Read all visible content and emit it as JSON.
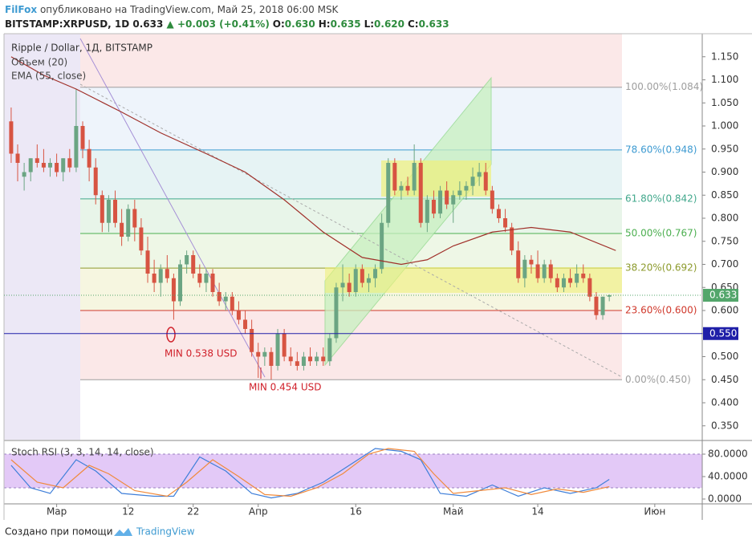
{
  "header": {
    "author": "FilFox",
    "published": "опубликовано на TradingView.com, Май 25, 2018 06:00 MSK",
    "symbol": "BITSTAMP:XRPUSD, 1D",
    "last": "0.633",
    "change": "▲ +0.003 (+0.41%)",
    "ohlc": [
      {
        "label": "O:",
        "value": "0.630"
      },
      {
        "label": "H:",
        "value": "0.635"
      },
      {
        "label": "L:",
        "value": "0.620"
      },
      {
        "label": "C:",
        "value": "0.633"
      }
    ]
  },
  "chart_data": [
    {
      "type": "candlestick",
      "title": "Ripple / Dollar, 1Д, BITSTAMP",
      "volume_label": "Объем (20)",
      "up_color": "#6ba583",
      "down_color": "#d75442",
      "open": [
        1.01,
        0.94,
        0.89,
        0.9,
        0.93,
        0.92,
        0.91,
        0.92,
        0.9,
        0.93,
        0.91,
        1.0,
        0.95,
        0.91,
        0.85,
        0.79,
        0.84,
        0.79,
        0.76,
        0.82,
        0.78,
        0.73,
        0.68,
        0.66,
        0.69,
        0.67,
        0.62,
        0.7,
        0.72,
        0.68,
        0.66,
        0.68,
        0.64,
        0.62,
        0.63,
        0.6,
        0.58,
        0.56,
        0.51,
        0.5,
        0.51,
        0.48,
        0.55,
        0.5,
        0.49,
        0.48,
        0.5,
        0.49,
        0.5,
        0.49,
        0.54,
        0.65,
        0.66,
        0.64,
        0.69,
        0.66,
        0.67,
        0.69,
        0.79,
        0.92,
        0.86,
        0.87,
        0.86,
        0.92,
        0.79,
        0.84,
        0.81,
        0.86,
        0.83,
        0.85,
        0.86,
        0.87,
        0.89,
        0.9,
        0.86,
        0.82,
        0.8,
        0.78,
        0.73,
        0.67,
        0.71,
        0.7,
        0.67,
        0.7,
        0.67,
        0.65,
        0.67,
        0.66,
        0.68,
        0.67,
        0.63,
        0.59,
        0.63
      ],
      "high": [
        1.04,
        0.96,
        0.92,
        0.93,
        0.96,
        0.95,
        0.93,
        0.94,
        0.93,
        0.95,
        1.08,
        1.01,
        0.97,
        0.93,
        0.86,
        0.85,
        0.86,
        0.82,
        0.83,
        0.84,
        0.8,
        0.76,
        0.71,
        0.7,
        0.72,
        0.68,
        0.71,
        0.73,
        0.73,
        0.7,
        0.69,
        0.69,
        0.66,
        0.64,
        0.64,
        0.62,
        0.6,
        0.58,
        0.53,
        0.52,
        0.52,
        0.56,
        0.56,
        0.52,
        0.51,
        0.51,
        0.52,
        0.51,
        0.52,
        0.55,
        0.66,
        0.7,
        0.68,
        0.7,
        0.7,
        0.68,
        0.7,
        0.81,
        0.93,
        0.93,
        0.88,
        0.89,
        0.96,
        0.93,
        0.85,
        0.86,
        0.87,
        0.88,
        0.86,
        0.88,
        0.88,
        0.91,
        0.92,
        0.92,
        0.87,
        0.83,
        0.82,
        0.79,
        0.75,
        0.72,
        0.72,
        0.73,
        0.71,
        0.71,
        0.68,
        0.68,
        0.69,
        0.7,
        0.7,
        0.68,
        0.64,
        0.63,
        0.635
      ],
      "low": [
        0.92,
        0.88,
        0.86,
        0.88,
        0.91,
        0.9,
        0.89,
        0.89,
        0.88,
        0.9,
        0.9,
        0.93,
        0.88,
        0.83,
        0.77,
        0.77,
        0.78,
        0.74,
        0.75,
        0.75,
        0.72,
        0.66,
        0.64,
        0.63,
        0.66,
        0.58,
        0.61,
        0.68,
        0.67,
        0.65,
        0.64,
        0.63,
        0.61,
        0.6,
        0.59,
        0.57,
        0.55,
        0.5,
        0.454,
        0.48,
        0.45,
        0.47,
        0.49,
        0.48,
        0.47,
        0.47,
        0.48,
        0.48,
        0.48,
        0.48,
        0.53,
        0.62,
        0.63,
        0.63,
        0.65,
        0.64,
        0.65,
        0.68,
        0.78,
        0.85,
        0.84,
        0.85,
        0.85,
        0.78,
        0.77,
        0.8,
        0.8,
        0.82,
        0.79,
        0.84,
        0.84,
        0.85,
        0.87,
        0.85,
        0.81,
        0.79,
        0.77,
        0.72,
        0.66,
        0.65,
        0.68,
        0.66,
        0.66,
        0.66,
        0.64,
        0.64,
        0.65,
        0.65,
        0.66,
        0.62,
        0.58,
        0.58,
        0.62
      ],
      "close": [
        0.94,
        0.92,
        0.9,
        0.93,
        0.92,
        0.91,
        0.92,
        0.9,
        0.93,
        0.91,
        1.0,
        0.95,
        0.91,
        0.85,
        0.79,
        0.84,
        0.79,
        0.76,
        0.82,
        0.78,
        0.73,
        0.68,
        0.66,
        0.69,
        0.67,
        0.62,
        0.7,
        0.72,
        0.68,
        0.66,
        0.68,
        0.64,
        0.62,
        0.63,
        0.6,
        0.58,
        0.56,
        0.51,
        0.5,
        0.51,
        0.48,
        0.55,
        0.5,
        0.49,
        0.48,
        0.5,
        0.49,
        0.5,
        0.49,
        0.54,
        0.65,
        0.66,
        0.64,
        0.69,
        0.66,
        0.67,
        0.69,
        0.79,
        0.92,
        0.86,
        0.87,
        0.86,
        0.92,
        0.79,
        0.84,
        0.81,
        0.86,
        0.83,
        0.85,
        0.86,
        0.87,
        0.89,
        0.9,
        0.86,
        0.82,
        0.8,
        0.78,
        0.73,
        0.67,
        0.71,
        0.7,
        0.67,
        0.7,
        0.67,
        0.65,
        0.67,
        0.66,
        0.68,
        0.67,
        0.63,
        0.59,
        0.63,
        0.633
      ],
      "ema": {
        "name": "EMA (55, close)",
        "color": "#a0302a",
        "x": [
          0,
          5,
          10,
          17,
          23,
          30,
          36,
          42,
          48,
          54,
          60,
          64,
          68,
          74,
          80,
          86,
          93
        ],
        "values": [
          1.15,
          1.11,
          1.08,
          1.03,
          0.985,
          0.94,
          0.9,
          0.84,
          0.77,
          0.715,
          0.7,
          0.71,
          0.74,
          0.77,
          0.78,
          0.77,
          0.73
        ]
      },
      "fib_levels": [
        {
          "label": "100.00%(1.084)",
          "value": 1.084,
          "color": "#9e9e9e"
        },
        {
          "label": "78.60%(0.948)",
          "value": 0.948,
          "color": "#3d9ad1"
        },
        {
          "label": "61.80%(0.842)",
          "value": 0.842,
          "color": "#42a88c"
        },
        {
          "label": "50.00%(0.767)",
          "value": 0.767,
          "color": "#4caf50"
        },
        {
          "label": "38.20%(0.692)",
          "value": 0.692,
          "color": "#8c9a2c"
        },
        {
          "label": "23.60%(0.600)",
          "value": 0.6,
          "color": "#d0382b"
        },
        {
          "label": "0.00%(0.450)",
          "value": 0.45,
          "color": "#9e9e9e"
        }
      ],
      "hline": {
        "value": 0.55,
        "label": "0.550",
        "color": "#1f1fa8"
      },
      "last_price": {
        "value": 0.633,
        "label": "0.633",
        "color": "#53a66b"
      },
      "annotations": [
        "MIN 0.538 USD",
        "MIN 0.454 USD"
      ],
      "xlim": [
        -1.1,
        106.3
      ],
      "ylim": [
        0.32,
        1.2
      ],
      "yticks": [
        {
          "value": 1.15,
          "label": "1.150"
        },
        {
          "value": 1.1,
          "label": "1.100"
        },
        {
          "value": 1.05,
          "label": "1.050"
        },
        {
          "value": 1.0,
          "label": "1.000"
        },
        {
          "value": 0.95,
          "label": "0.950"
        },
        {
          "value": 0.9,
          "label": "0.900"
        },
        {
          "value": 0.85,
          "label": "0.850"
        },
        {
          "value": 0.8,
          "label": "0.800"
        },
        {
          "value": 0.75,
          "label": "0.750"
        },
        {
          "value": 0.7,
          "label": "0.700"
        },
        {
          "value": 0.65,
          "label": "0.650"
        },
        {
          "value": 0.6,
          "label": "0.600"
        },
        {
          "value": 0.55,
          "label": "0.550"
        },
        {
          "value": 0.5,
          "label": "0.500"
        },
        {
          "value": 0.45,
          "label": "0.450"
        },
        {
          "value": 0.4,
          "label": "0.400"
        },
        {
          "value": 0.35,
          "label": "0.350"
        }
      ],
      "xticks": [
        {
          "value": 7,
          "label": "Мар"
        },
        {
          "value": 18,
          "label": "12"
        },
        {
          "value": 28,
          "label": "22"
        },
        {
          "value": 38,
          "label": "Апр"
        },
        {
          "value": 53,
          "label": "16"
        },
        {
          "value": 68,
          "label": "Май"
        },
        {
          "value": 81,
          "label": "14"
        },
        {
          "value": 99,
          "label": "Июн"
        }
      ]
    },
    {
      "type": "line",
      "title": "Stoch RSI (3, 3, 14, 14, close)",
      "xlim": [
        -1.1,
        106.3
      ],
      "ylim": [
        -8.6,
        102.9
      ],
      "band": [
        20,
        80
      ],
      "band_color": "#e3c9f7",
      "yticks": [
        {
          "value": 80,
          "label": "80.0000"
        },
        {
          "value": 40,
          "label": "40.0000"
        },
        {
          "value": 0,
          "label": "0.0000"
        }
      ],
      "series": [
        {
          "color": "#3f7fd9",
          "x": [
            0,
            3,
            6,
            10,
            13,
            17,
            22,
            25,
            29,
            33,
            37,
            40,
            44,
            48,
            52,
            56,
            60,
            63,
            66,
            70,
            74,
            78,
            82,
            86,
            90,
            92
          ],
          "values": [
            60,
            20,
            10,
            70,
            50,
            10,
            5,
            5,
            75,
            50,
            10,
            2,
            10,
            30,
            60,
            90,
            85,
            70,
            10,
            5,
            25,
            5,
            20,
            10,
            20,
            35
          ]
        },
        {
          "color": "#f08a3c",
          "x": [
            0,
            4,
            8,
            12,
            15,
            19,
            24,
            27,
            31,
            35,
            39,
            43,
            47,
            51,
            55,
            58,
            62,
            65,
            68,
            72,
            76,
            80,
            84,
            88,
            92
          ],
          "values": [
            70,
            30,
            20,
            60,
            45,
            15,
            5,
            30,
            70,
            40,
            8,
            5,
            20,
            45,
            80,
            90,
            85,
            45,
            10,
            15,
            20,
            8,
            18,
            12,
            22
          ]
        }
      ]
    }
  ],
  "footer": {
    "text": "Создано при помощи",
    "brand": "TradingView"
  }
}
